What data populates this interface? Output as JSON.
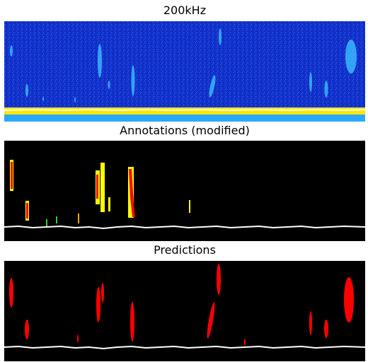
{
  "panels": [
    {
      "title": "200kHz",
      "kind": "echogram"
    },
    {
      "title": "Annotations (modified)",
      "kind": "annotations"
    },
    {
      "title": "Predictions",
      "kind": "predictions"
    }
  ],
  "colors": {
    "echogram_background": "#1030c8",
    "echogram_deep": "#0a1ea0",
    "echogram_school": "#39b6ff",
    "seabed_yellow": "#ffe600",
    "seabed_white": "#ffffff",
    "seabed_cyan": "#4fd0ff",
    "mask_background": "#000000",
    "label_yellow": "#ffff00",
    "label_red": "#ff0000",
    "label_green": "#2fcf2f",
    "label_orange": "#ffa500",
    "bottom_line": "#ffffff"
  }
}
